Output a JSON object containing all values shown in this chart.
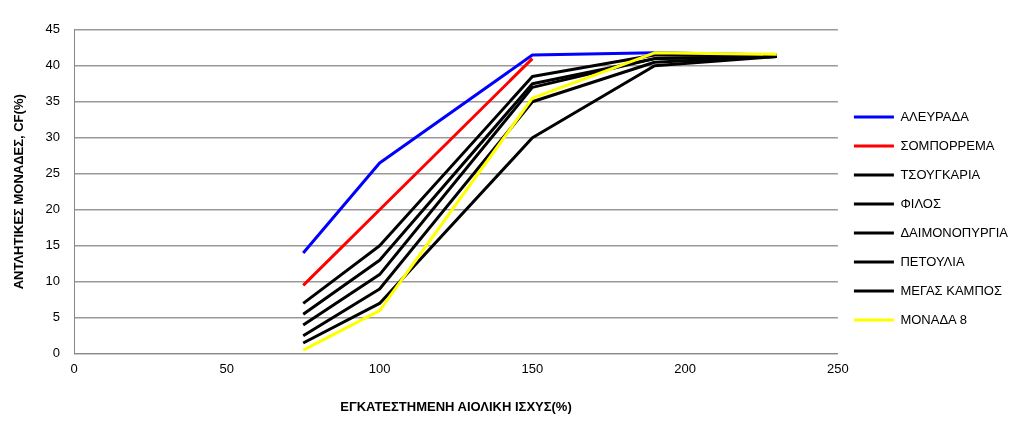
{
  "chart_data": {
    "type": "line",
    "xlabel": "ΕΓΚΑΤΕΣΤΗΜΕΝΗ ΑΙΟΛΙΚΗ ΙΣΧΥΣ(%)",
    "ylabel": "ΑΝΤΛΗΤΙΚΕΣ ΜΟΝΑΔΕΣ, CF(%)",
    "x": [
      75,
      100,
      150,
      190,
      230
    ],
    "series": [
      {
        "name": "ΑΛΕΥΡΑΔΑ",
        "color": "#0000ff",
        "values": [
          14,
          26.5,
          41.5,
          41.8,
          41.5
        ]
      },
      {
        "name": "ΣΟΜΠΟΡΡΕΜΑ",
        "color": "#ff0000",
        "values": [
          9.5,
          20,
          41,
          null,
          null
        ]
      },
      {
        "name": "ΤΣΟΥΓΚΑΡΙΑ",
        "color": "#000000",
        "values": [
          7,
          15,
          38.5,
          41.5,
          41.5
        ]
      },
      {
        "name": "ΦΙΛΟΣ",
        "color": "#000000",
        "values": [
          5.5,
          13,
          37.5,
          41,
          41.3
        ]
      },
      {
        "name": "ΔΑΙΜΟΝΟΠΥΡΓΙΑ",
        "color": "#000000",
        "values": [
          4,
          11,
          37,
          41,
          41.3
        ]
      },
      {
        "name": "ΠΕΤΟΥΛΙΑ",
        "color": "#000000",
        "values": [
          2.5,
          9,
          35,
          40.5,
          41.3
        ]
      },
      {
        "name": "ΜΕΓΑΣ ΚΑΜΠΟΣ",
        "color": "#000000",
        "values": [
          1.5,
          7,
          30,
          40,
          41.3
        ]
      },
      {
        "name": "ΜΟΝΑΔΑ 8",
        "color": "#ffff00",
        "values": [
          0.5,
          6,
          35.5,
          41.8,
          41.6
        ]
      }
    ],
    "xlim": [
      0,
      250
    ],
    "xticks": [
      0,
      50,
      100,
      150,
      200,
      250
    ],
    "ylim": [
      0,
      45
    ],
    "yticks": [
      0,
      5,
      10,
      15,
      20,
      25,
      30,
      35,
      40,
      45
    ],
    "grid": "y",
    "legend": "right",
    "marker": "none",
    "line_style": "solid"
  }
}
